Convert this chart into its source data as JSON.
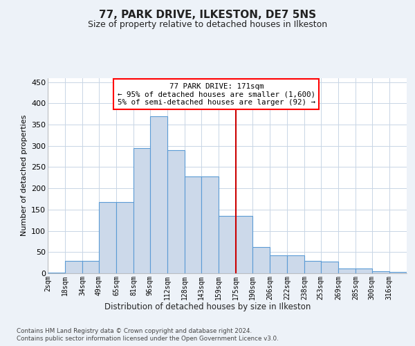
{
  "title": "77, PARK DRIVE, ILKESTON, DE7 5NS",
  "subtitle": "Size of property relative to detached houses in Ilkeston",
  "xlabel": "Distribution of detached houses by size in Ilkeston",
  "ylabel": "Number of detached properties",
  "bar_labels": [
    "2sqm",
    "18sqm",
    "34sqm",
    "49sqm",
    "65sqm",
    "81sqm",
    "96sqm",
    "112sqm",
    "128sqm",
    "143sqm",
    "159sqm",
    "175sqm",
    "190sqm",
    "206sqm",
    "222sqm",
    "238sqm",
    "253sqm",
    "269sqm",
    "285sqm",
    "300sqm",
    "316sqm"
  ],
  "bin_lefts": [
    2,
    18,
    34,
    49,
    65,
    81,
    96,
    112,
    128,
    143,
    159,
    175,
    190,
    206,
    222,
    238,
    253,
    269,
    285,
    300,
    316
  ],
  "bar_values": [
    2,
    30,
    30,
    167,
    167,
    295,
    370,
    290,
    228,
    228,
    135,
    135,
    62,
    42,
    42,
    30,
    27,
    12,
    12,
    5,
    3
  ],
  "bar_color": "#ccd9ea",
  "bar_edge_color": "#5b9bd5",
  "vline_x": 175,
  "vline_color": "#cc0000",
  "annotation_line1": "77 PARK DRIVE: 171sqm",
  "annotation_line2": "← 95% of detached houses are smaller (1,600)",
  "annotation_line3": "5% of semi-detached houses are larger (92) →",
  "ylim": [
    0,
    460
  ],
  "yticks": [
    0,
    50,
    100,
    150,
    200,
    250,
    300,
    350,
    400,
    450
  ],
  "footer_line1": "Contains HM Land Registry data © Crown copyright and database right 2024.",
  "footer_line2": "Contains public sector information licensed under the Open Government Licence v3.0.",
  "bg_color": "#edf2f8",
  "plot_bg_color": "#ffffff",
  "grid_color": "#c8d5e5"
}
